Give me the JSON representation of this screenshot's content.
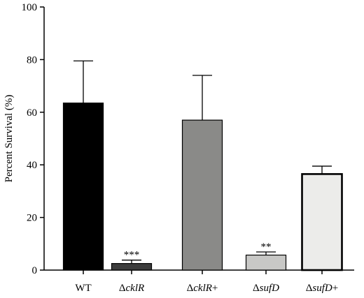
{
  "chart_data": {
    "type": "bar",
    "ylabel": "Percent Survival (%)",
    "xlabel": "",
    "ylim": [
      0,
      100
    ],
    "yticks": [
      0,
      20,
      40,
      60,
      80,
      100
    ],
    "grid": false,
    "categories": [
      {
        "prefix": "",
        "italic": "",
        "suffix": "WT"
      },
      {
        "prefix": "Δ",
        "italic": "cklR",
        "suffix": ""
      },
      {
        "prefix": "Δ",
        "italic": "cklR",
        "suffix": "+"
      },
      {
        "prefix": "Δ",
        "italic": "sufD",
        "suffix": ""
      },
      {
        "prefix": "Δ",
        "italic": "sufD",
        "suffix": "+"
      }
    ],
    "values": [
      63.5,
      2.5,
      57,
      5.7,
      36.5
    ],
    "errors": [
      16,
      1.3,
      17,
      1.2,
      3
    ],
    "annotations": [
      "",
      "***",
      "",
      "**",
      ""
    ],
    "colors": [
      "#000000",
      "#3c3c3c",
      "#8a8a88",
      "#c8c8c6",
      "#ececea"
    ]
  }
}
